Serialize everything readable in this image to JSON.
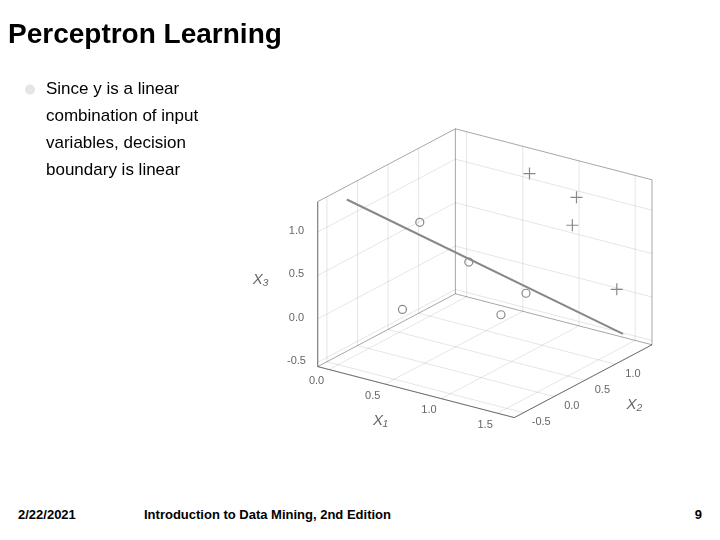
{
  "chart_data": {
    "type": "scatter3d",
    "title": "Perceptron Learning",
    "xlabel": "X₁",
    "ylabel": "X₂",
    "zlabel": "X₃",
    "annotations": [
      "Since y is a linear\ncombination of input\nvariables, decision\nboundary is linear",
      "2/22/2021",
      "Introduction to Data Mining, 2nd Edition",
      "9"
    ],
    "series": [
      {
        "type": "scatter",
        "marker": "circle",
        "color": "#888888",
        "values": [
          [
            0.4,
            0.1,
            1.0
          ],
          [
            0.7,
            0.35,
            0.55
          ],
          [
            0.3,
            0.0,
            0.0
          ],
          [
            0.85,
            0.6,
            -0.1
          ],
          [
            1.1,
            0.55,
            0.25
          ]
        ]
      },
      {
        "type": "scatter",
        "marker": "plus",
        "color": "#888888",
        "values": [
          [
            0.75,
            1.25,
            1.25
          ],
          [
            1.25,
            1.1,
            1.2
          ],
          [
            1.05,
            1.4,
            0.7
          ],
          [
            1.5,
            1.3,
            0.15
          ]
        ]
      },
      {
        "type": "line",
        "color": "#888888",
        "values": [
          [
            0.05,
            -0.45,
            1.35
          ],
          [
            1.5,
            1.4,
            -0.4
          ]
        ]
      }
    ],
    "xlim": [
      -0.1,
      1.65
    ],
    "ylim": [
      -0.65,
      1.6
    ],
    "zlim": [
      -0.55,
      1.35
    ],
    "xticks": [
      {
        "value": 0,
        "label": "0.0"
      },
      0.5,
      {
        "value": 1,
        "label": "1.0"
      },
      1.5
    ],
    "yticks": [
      -0.5,
      {
        "value": 0,
        "label": "0.0"
      },
      0.5,
      {
        "value": 1,
        "label": "1.0"
      }
    ],
    "zticks": [
      -0.5,
      {
        "value": 0,
        "label": "0.0"
      },
      0.5,
      {
        "value": 1,
        "label": "1.0"
      }
    ],
    "grid": true
  }
}
